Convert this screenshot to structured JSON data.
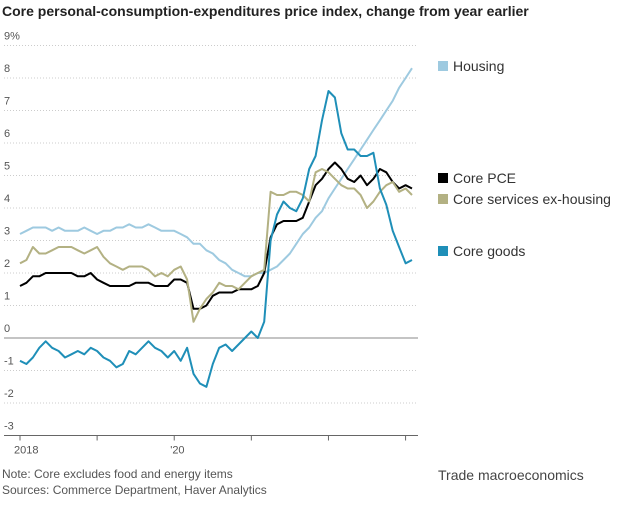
{
  "chart_data": {
    "type": "line",
    "title": "Core personal-consumption-expenditures price index, change from year earlier",
    "categories": [
      "2018",
      null,
      null,
      null,
      null,
      null,
      null,
      null,
      null,
      null,
      null,
      null,
      null,
      null,
      null,
      null,
      null,
      null,
      null,
      null,
      null,
      null,
      null,
      null,
      "'20",
      null,
      null,
      null,
      null,
      null,
      null,
      null,
      null,
      null,
      null,
      null,
      null,
      null,
      null,
      null,
      null,
      null,
      null,
      null,
      null,
      null,
      null,
      null,
      null,
      null,
      null,
      null,
      null,
      null,
      null,
      null,
      null,
      null,
      null,
      null,
      null,
      null
    ],
    "series": [
      {
        "name": "Housing",
        "color": "#9ecae0",
        "values": [
          3.2,
          3.3,
          3.4,
          3.4,
          3.4,
          3.3,
          3.4,
          3.3,
          3.3,
          3.3,
          3.4,
          3.3,
          3.2,
          3.3,
          3.3,
          3.4,
          3.4,
          3.5,
          3.4,
          3.4,
          3.5,
          3.4,
          3.3,
          3.3,
          3.3,
          3.2,
          3.1,
          2.9,
          2.9,
          2.7,
          2.6,
          2.4,
          2.3,
          2.1,
          2.0,
          1.9,
          1.9,
          2.0,
          2.0,
          2.1,
          2.2,
          2.4,
          2.6,
          2.9,
          3.2,
          3.4,
          3.7,
          3.9,
          4.3,
          4.6,
          4.9,
          5.2,
          5.5,
          5.8,
          6.1,
          6.4,
          6.7,
          7.0,
          7.3,
          7.7,
          8.0,
          8.3
        ]
      },
      {
        "name": "Core PCE",
        "color": "#000000",
        "values": [
          1.6,
          1.7,
          1.9,
          1.9,
          2.0,
          2.0,
          2.0,
          2.0,
          2.0,
          1.9,
          1.9,
          2.0,
          1.8,
          1.7,
          1.6,
          1.6,
          1.6,
          1.6,
          1.7,
          1.7,
          1.7,
          1.6,
          1.6,
          1.6,
          1.8,
          1.8,
          1.7,
          0.9,
          0.9,
          1.0,
          1.3,
          1.4,
          1.4,
          1.4,
          1.5,
          1.5,
          1.5,
          1.6,
          2.0,
          3.1,
          3.5,
          3.6,
          3.6,
          3.6,
          3.7,
          4.2,
          4.7,
          4.9,
          5.2,
          5.4,
          5.2,
          4.9,
          4.8,
          5.0,
          4.7,
          4.9,
          5.2,
          5.1,
          4.8,
          4.6,
          4.7,
          4.6
        ]
      },
      {
        "name": "Core services ex-housing",
        "color": "#b3b183",
        "values": [
          2.3,
          2.4,
          2.8,
          2.6,
          2.6,
          2.7,
          2.8,
          2.8,
          2.8,
          2.7,
          2.6,
          2.7,
          2.8,
          2.5,
          2.3,
          2.2,
          2.1,
          2.2,
          2.2,
          2.2,
          2.1,
          1.9,
          2.0,
          1.9,
          2.1,
          2.2,
          1.8,
          0.5,
          0.9,
          1.2,
          1.4,
          1.7,
          1.6,
          1.6,
          1.5,
          1.7,
          1.9,
          2.0,
          2.1,
          4.5,
          4.4,
          4.4,
          4.5,
          4.5,
          4.4,
          4.2,
          5.1,
          5.2,
          5.1,
          4.9,
          4.7,
          4.6,
          4.6,
          4.4,
          4.0,
          4.2,
          4.5,
          4.7,
          4.8,
          4.5,
          4.6,
          4.4
        ]
      },
      {
        "name": "Core goods",
        "color": "#1f8fb8",
        "values": [
          -0.7,
          -0.8,
          -0.6,
          -0.3,
          -0.1,
          -0.3,
          -0.4,
          -0.6,
          -0.5,
          -0.4,
          -0.5,
          -0.3,
          -0.4,
          -0.6,
          -0.7,
          -0.9,
          -0.8,
          -0.4,
          -0.5,
          -0.3,
          -0.1,
          -0.3,
          -0.4,
          -0.6,
          -0.4,
          -0.7,
          -0.3,
          -1.1,
          -1.4,
          -1.5,
          -0.8,
          -0.3,
          -0.2,
          -0.4,
          -0.2,
          0.0,
          0.2,
          0.0,
          0.5,
          3.0,
          3.8,
          4.2,
          4.0,
          3.9,
          4.3,
          5.2,
          5.6,
          6.7,
          7.6,
          7.4,
          6.3,
          5.8,
          5.8,
          5.6,
          5.6,
          5.7,
          4.6,
          4.1,
          3.3,
          2.8,
          2.3,
          2.4
        ]
      }
    ],
    "ylim": [
      -3,
      9
    ],
    "yticks": [
      -3,
      -2,
      -1,
      0,
      1,
      2,
      3,
      4,
      5,
      6,
      7,
      8,
      {
        "value": 9,
        "label": "9%"
      }
    ],
    "grid": true,
    "notes": [
      "Note: Core excludes food and energy items",
      "Sources: Commerce Department, Haver Analytics"
    ],
    "watermark": "Trade macroeconomics"
  }
}
